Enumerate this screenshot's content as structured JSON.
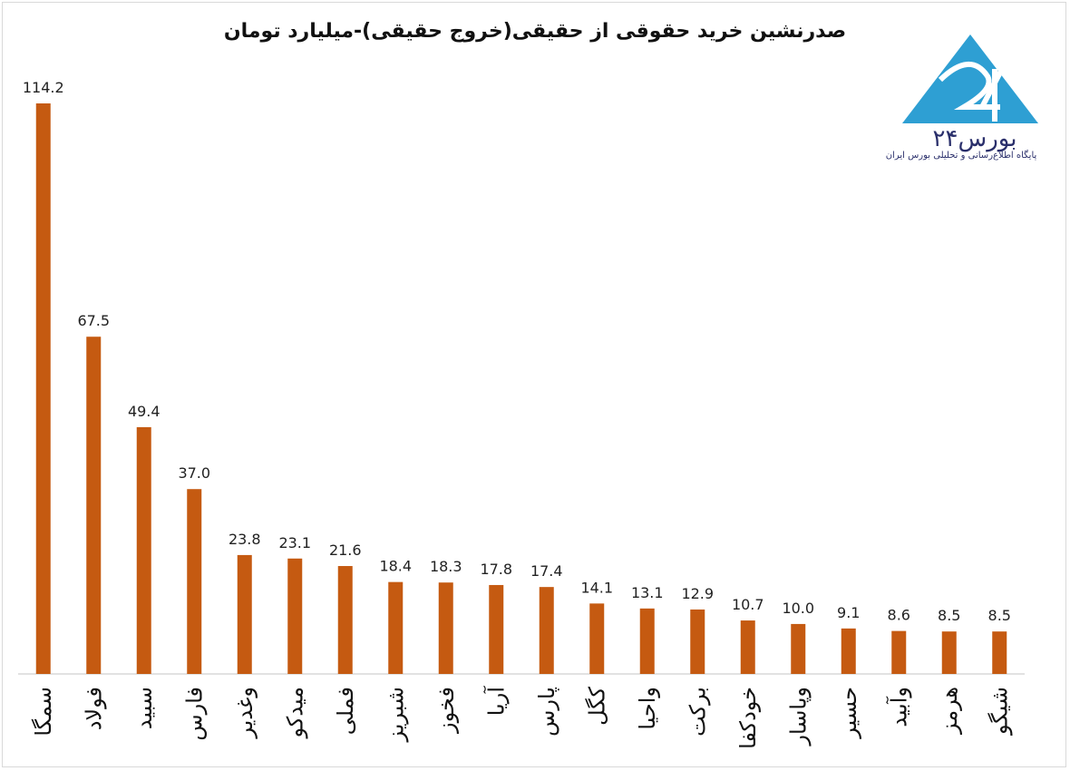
{
  "title": "صدرنشین خرید حقوقی از حقیقی(خروج حقیقی)-میلیارد تومان",
  "logo": {
    "name": "بورس۲۴",
    "tagline": "پایگاه اطلاع‌رسانی و تحلیلی بورس ایران",
    "color": "#2e9fd3"
  },
  "chart_data": {
    "type": "bar",
    "title": "صدرنشین خرید حقوقی از حقیقی(خروج حقیقی)-میلیارد تومان",
    "xlabel": "",
    "ylabel": "",
    "categories": [
      "سمگا",
      "فولاد",
      "سبید",
      "فارس",
      "وغدیر",
      "میدکو",
      "فملی",
      "شبریز",
      "فخوز",
      "آریا",
      "پارس",
      "کگل",
      "واحیا",
      "برکت",
      "خودکفا",
      "وپاسار",
      "حسیر",
      "وآبید",
      "هرمز",
      "شیگو"
    ],
    "values": [
      114.2,
      67.5,
      49.4,
      37.0,
      23.8,
      23.1,
      21.6,
      18.4,
      18.3,
      17.8,
      17.4,
      14.1,
      13.1,
      12.9,
      10.7,
      10.0,
      9.1,
      8.6,
      8.5,
      8.5
    ],
    "labels": [
      "114.2",
      "67.5",
      "49.4",
      "37.0",
      "23.8",
      "23.1",
      "21.6",
      "18.4",
      "18.3",
      "17.8",
      "17.4",
      "14.1",
      "13.1",
      "12.9",
      "10.7",
      "10.0",
      "9.1",
      "8.6",
      "8.5",
      "8.5"
    ],
    "bar_color": "#c55a11",
    "ylim": [
      0,
      114.2
    ],
    "grid": false,
    "legend": "none"
  }
}
